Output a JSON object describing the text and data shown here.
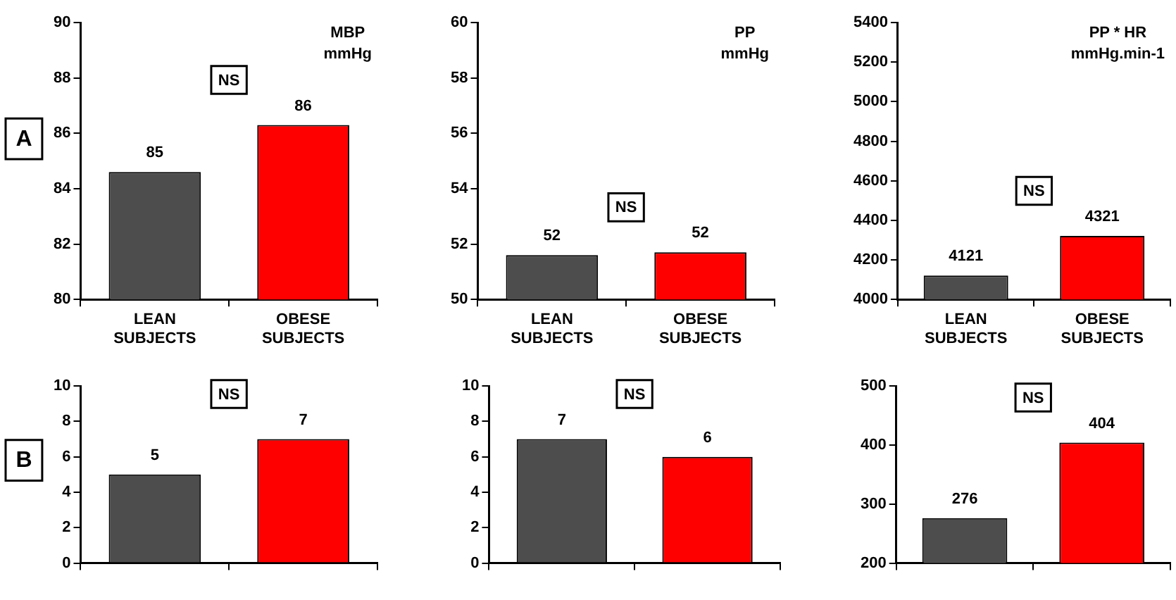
{
  "chart_data": [
    {
      "type": "bar",
      "title": "MBP\nmmHg",
      "categories": [
        "LEAN SUBJECTS",
        "OBESE SUBJECTS"
      ],
      "values": [
        84.6,
        86.3
      ],
      "value_labels": [
        "85",
        "86"
      ],
      "colors": [
        "#4d4d4d",
        "#ff0000"
      ],
      "ylim": [
        80,
        90
      ],
      "yticks": [
        80,
        82,
        84,
        86,
        88,
        90
      ],
      "annotations": [
        "A",
        "NS"
      ]
    },
    {
      "type": "bar",
      "title": "PP\nmmHg",
      "categories": [
        "LEAN SUBJECTS",
        "OBESE SUBJECTS"
      ],
      "values": [
        51.6,
        51.7
      ],
      "value_labels": [
        "52",
        "52"
      ],
      "colors": [
        "#4d4d4d",
        "#ff0000"
      ],
      "ylim": [
        50,
        60
      ],
      "yticks": [
        50,
        52,
        54,
        56,
        58,
        60
      ],
      "annotations": [
        "NS"
      ]
    },
    {
      "type": "bar",
      "title": "PP * HR\nmmHg.min-1",
      "categories": [
        "LEAN SUBJECTS",
        "OBESE SUBJECTS"
      ],
      "values": [
        4121,
        4321
      ],
      "data_labels": true,
      "colors": [
        "#4d4d4d",
        "#ff0000"
      ],
      "ylim": [
        4000,
        5400
      ],
      "yticks": [
        4000,
        4200,
        4400,
        4600,
        4800,
        5000,
        5200,
        5400
      ],
      "annotations": [
        "NS"
      ]
    },
    {
      "type": "bar",
      "categories": [
        null,
        null
      ],
      "values": [
        5,
        7
      ],
      "data_labels": true,
      "colors": [
        "#4d4d4d",
        "#ff0000"
      ],
      "ylim": [
        0,
        10
      ],
      "yticks": [
        0,
        2,
        4,
        6,
        8,
        10
      ],
      "annotations": [
        "B",
        "NS"
      ]
    },
    {
      "type": "bar",
      "categories": [
        null,
        null
      ],
      "values": [
        7,
        6
      ],
      "data_labels": true,
      "colors": [
        "#4d4d4d",
        "#ff0000"
      ],
      "ylim": [
        0,
        10
      ],
      "yticks": [
        0,
        2,
        4,
        6,
        8,
        10
      ],
      "annotations": [
        "NS"
      ]
    },
    {
      "type": "bar",
      "categories": [
        null,
        null
      ],
      "values": [
        276,
        404
      ],
      "data_labels": true,
      "colors": [
        "#4d4d4d",
        "#ff0000"
      ],
      "ylim": [
        200,
        500
      ],
      "yticks": [
        200,
        300,
        400,
        500
      ],
      "annotations": [
        "NS"
      ]
    }
  ]
}
